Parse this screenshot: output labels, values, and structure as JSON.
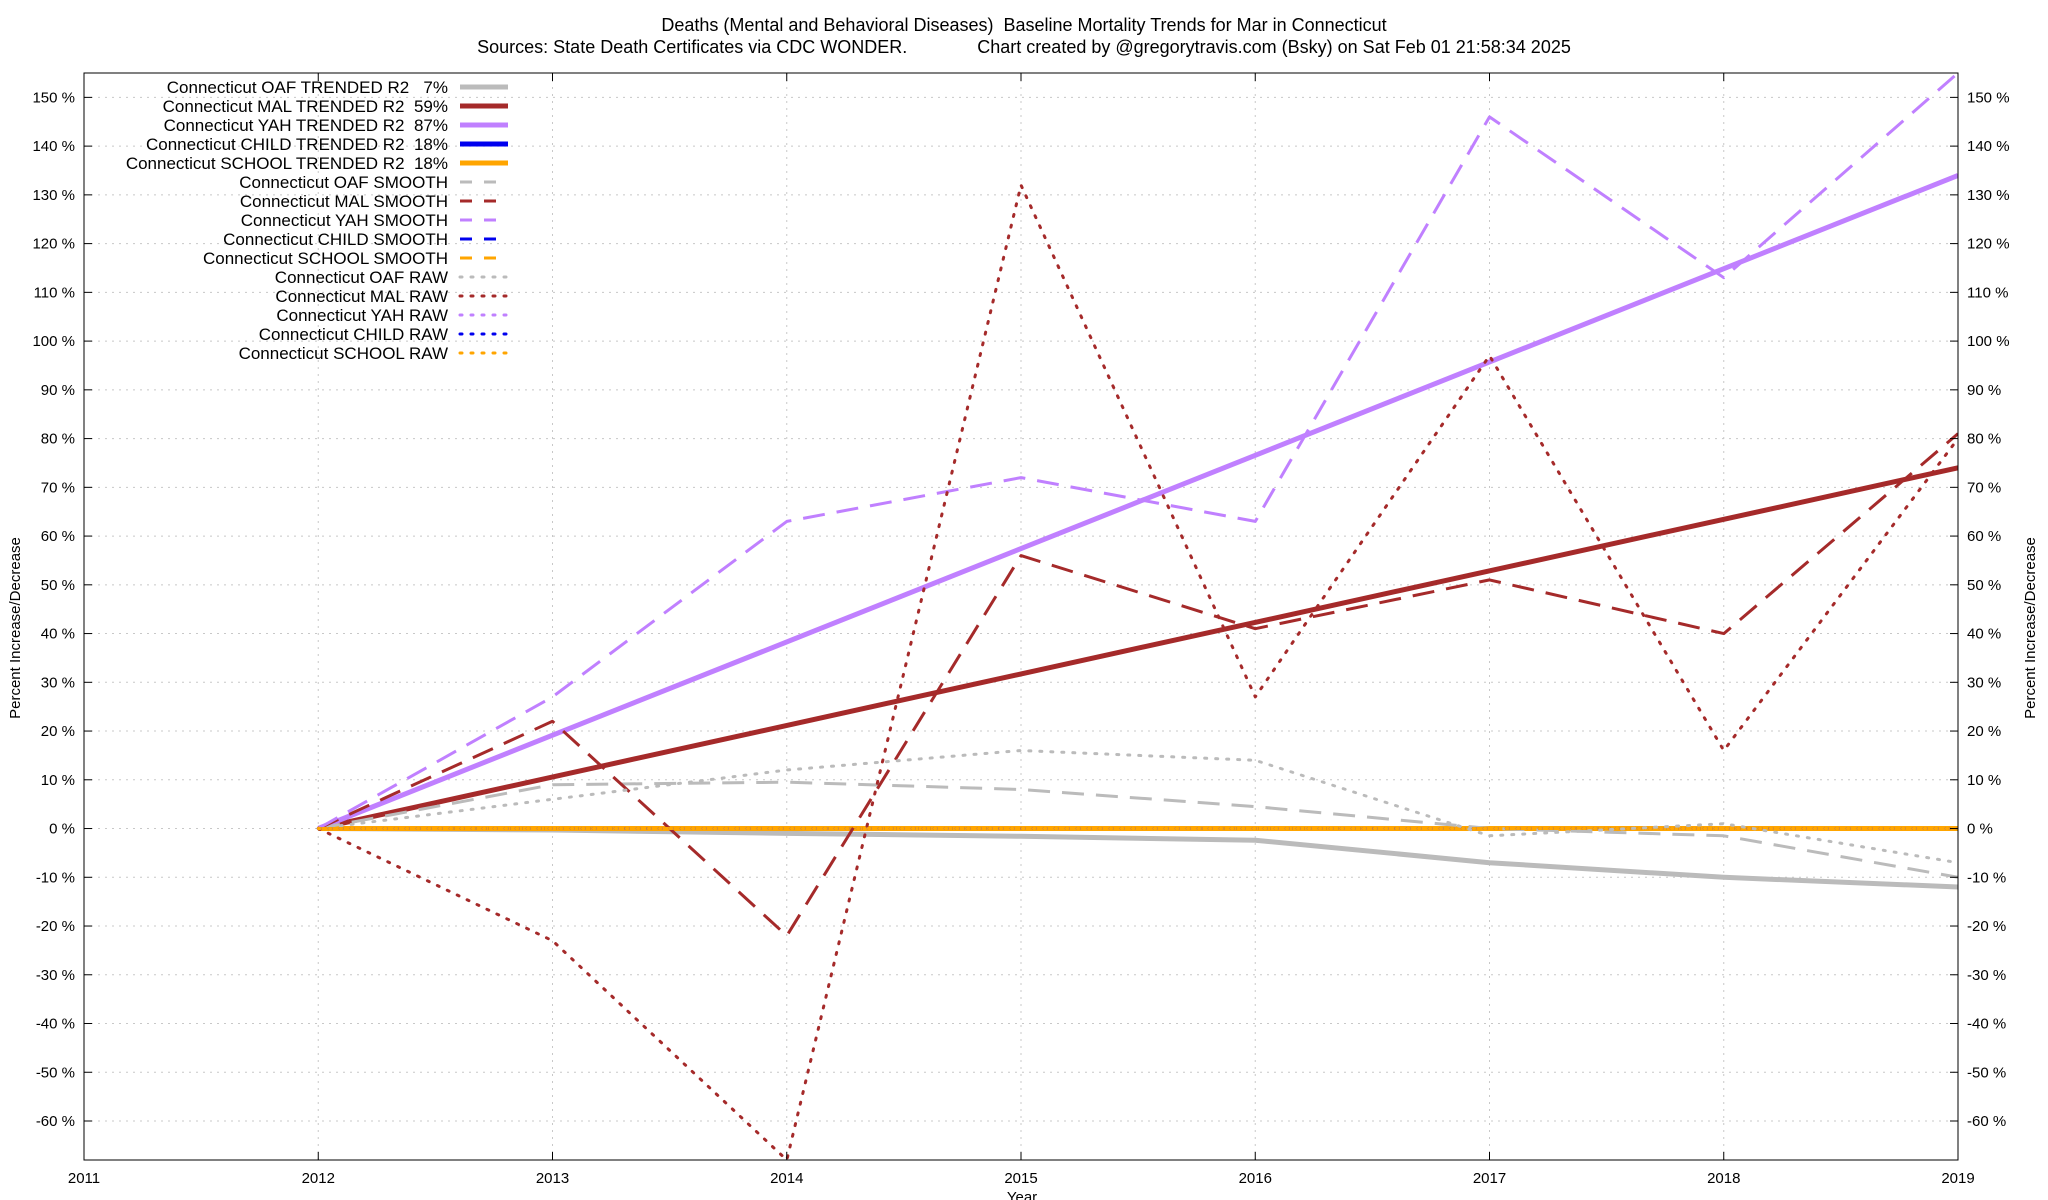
{
  "chart_data": {
    "type": "line",
    "title": "Deaths (Mental and Behavioral Diseases)  Baseline Mortality Trends for Mar in Connecticut",
    "subtitle": "Sources: State Death Certificates via CDC WONDER.              Chart created by @gregorytravis.com (Bsky) on Sat Feb 01 21:58:34 2025",
    "xlabel": "Year",
    "ylabel": "Percent Increase/Decrease",
    "ylabel_right": "Percent Increase/Decrease",
    "xlim": [
      2011,
      2019
    ],
    "ylim": [
      -68,
      155
    ],
    "x_ticks": [
      2011,
      2012,
      2013,
      2014,
      2015,
      2016,
      2017,
      2018,
      2019
    ],
    "x_tick_labels": [
      "2011",
      "2012",
      "2013",
      "2014",
      "2015",
      "2016",
      "2017",
      "2018",
      "2019"
    ],
    "y_ticks": [
      -60,
      -50,
      -40,
      -30,
      -20,
      -10,
      0,
      10,
      20,
      30,
      40,
      50,
      60,
      70,
      80,
      90,
      100,
      110,
      120,
      130,
      140,
      150
    ],
    "y_tick_labels": [
      "-60 %",
      "-50 %",
      "-40 %",
      "-30 %",
      "-20 %",
      "-10 %",
      "0 %",
      "10 %",
      "20 %",
      "30 %",
      "40 %",
      "50 %",
      "60 %",
      "70 %",
      "80 %",
      "90 %",
      "100 %",
      "110 %",
      "120 %",
      "130 %",
      "140 %",
      "150 %"
    ],
    "grid": true,
    "legend_position": "top-left",
    "series": [
      {
        "name": "Connecticut OAF TRENDED R2   7%",
        "style": "solid",
        "width": 5,
        "color": "#bbbbbb",
        "x": [
          2012,
          2013,
          2014,
          2015,
          2016,
          2017,
          2018,
          2019
        ],
        "y": [
          0,
          -0.3,
          -1,
          -1.6,
          -2.4,
          -7,
          -10,
          -12
        ]
      },
      {
        "name": "Connecticut MAL TRENDED R2  59%",
        "style": "solid",
        "width": 5,
        "color": "#a52a2a",
        "x": [
          2012,
          2019
        ],
        "y": [
          0,
          74
        ]
      },
      {
        "name": "Connecticut YAH TRENDED R2  87%",
        "style": "solid",
        "width": 5,
        "color": "#c080ff",
        "x": [
          2012,
          2019
        ],
        "y": [
          0,
          134
        ]
      },
      {
        "name": "Connecticut CHILD TRENDED R2  18%",
        "style": "solid",
        "width": 5,
        "color": "#0000ee",
        "x": [
          2012,
          2019
        ],
        "y": [
          0,
          0
        ]
      },
      {
        "name": "Connecticut SCHOOL TRENDED R2  18%",
        "style": "solid",
        "width": 5,
        "color": "#ffa500",
        "x": [
          2012,
          2019
        ],
        "y": [
          0,
          0
        ]
      },
      {
        "name": "Connecticut OAF SMOOTH",
        "style": "dashed",
        "width": 3,
        "color": "#bbbbbb",
        "x": [
          2012,
          2013,
          2014,
          2015,
          2016,
          2017,
          2018,
          2019
        ],
        "y": [
          0,
          9,
          9.5,
          8,
          4.5,
          0,
          -1.5,
          -10
        ]
      },
      {
        "name": "Connecticut MAL SMOOTH",
        "style": "dashed",
        "width": 3,
        "color": "#a52a2a",
        "x": [
          2012,
          2013,
          2014,
          2015,
          2016,
          2017,
          2018,
          2019
        ],
        "y": [
          0,
          22,
          -22,
          56,
          41,
          51,
          40,
          81
        ]
      },
      {
        "name": "Connecticut YAH SMOOTH",
        "style": "dashed",
        "width": 3,
        "color": "#c080ff",
        "x": [
          2012,
          2013,
          2014,
          2015,
          2016,
          2017,
          2018,
          2019
        ],
        "y": [
          0,
          27,
          63,
          72,
          63,
          146,
          113,
          155
        ]
      },
      {
        "name": "Connecticut CHILD SMOOTH",
        "style": "dashed",
        "width": 3,
        "color": "#0000ee",
        "x": [
          2012,
          2019
        ],
        "y": [
          0,
          0
        ]
      },
      {
        "name": "Connecticut SCHOOL SMOOTH",
        "style": "dashed",
        "width": 3,
        "color": "#ffa500",
        "x": [
          2012,
          2019
        ],
        "y": [
          0,
          0
        ]
      },
      {
        "name": "Connecticut OAF RAW",
        "style": "dotted",
        "width": 3,
        "color": "#bbbbbb",
        "x": [
          2012,
          2013,
          2014,
          2015,
          2016,
          2017,
          2018,
          2019
        ],
        "y": [
          0,
          6,
          12,
          16,
          14,
          -1.5,
          1,
          -7
        ]
      },
      {
        "name": "Connecticut MAL RAW",
        "style": "dotted",
        "width": 3,
        "color": "#a52a2a",
        "x": [
          2012,
          2013,
          2014,
          2015,
          2016,
          2017,
          2018,
          2019
        ],
        "y": [
          0,
          -23,
          -68,
          132,
          27,
          97,
          16,
          80
        ]
      },
      {
        "name": "Connecticut YAH RAW",
        "style": "dotted",
        "width": 3,
        "color": "#c080ff",
        "x": [
          2012,
          2019
        ],
        "y": [
          0,
          0
        ]
      },
      {
        "name": "Connecticut CHILD RAW",
        "style": "dotted",
        "width": 3,
        "color": "#0000ee",
        "x": [
          2012,
          2019
        ],
        "y": [
          0,
          0
        ]
      },
      {
        "name": "Connecticut SCHOOL RAW",
        "style": "dotted",
        "width": 3,
        "color": "#ffa500",
        "x": [
          2012,
          2019
        ],
        "y": [
          0,
          0
        ]
      }
    ]
  }
}
